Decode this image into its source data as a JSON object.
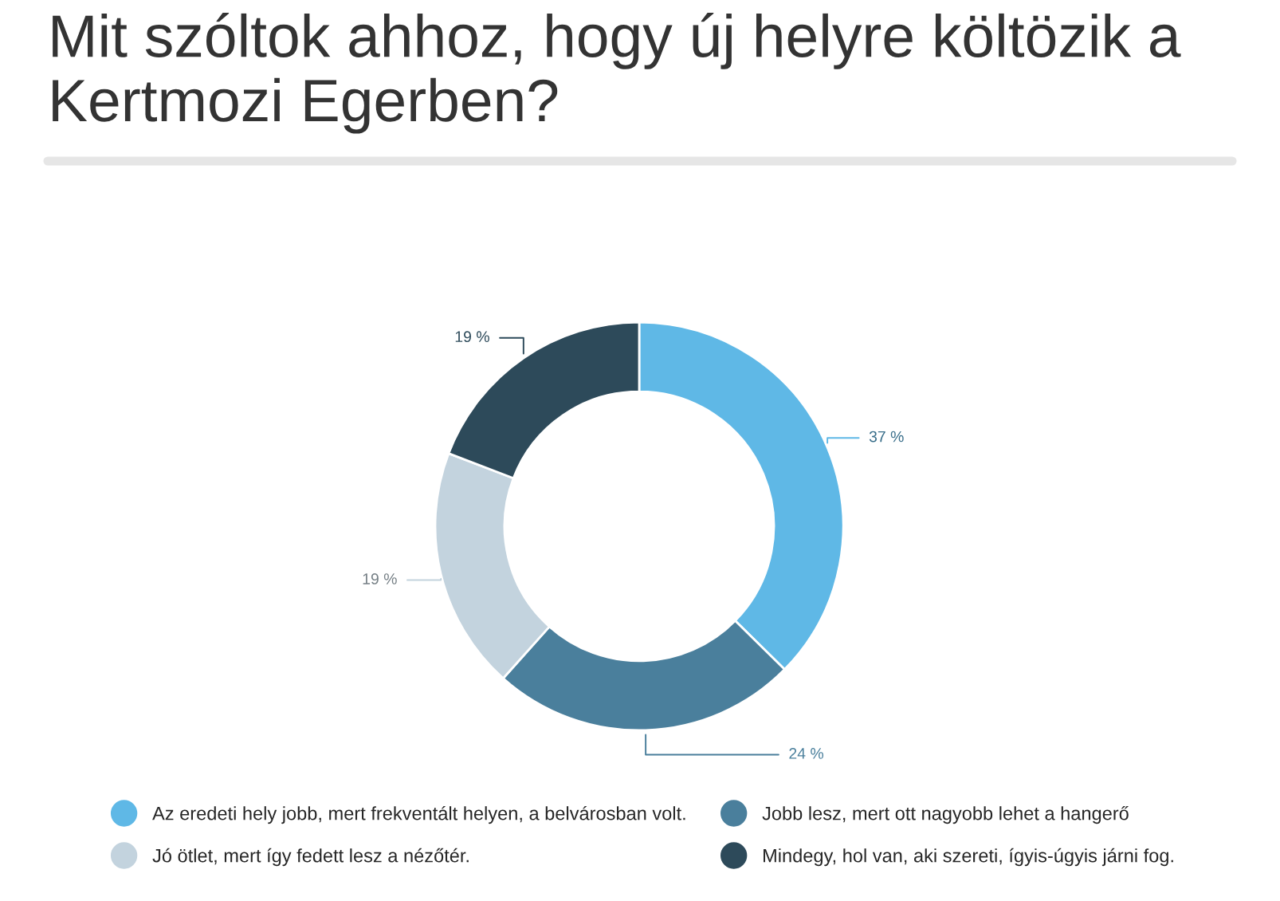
{
  "chart_data": {
    "type": "donut",
    "title": "Mit szóltok ahhoz, hogy új helyre költözik a Kertmozi Egerben?",
    "categories": [
      "Az eredeti hely jobb, mert frekventált helyen, a belvárosban volt.",
      "Jobb lesz, mert ott nagyobb lehet a hangerő",
      "Jó ötlet, mert így fedett lesz a nézőtér.",
      "Mindegy, hol van, aki szereti, ígyis-úgyis járni fog."
    ],
    "values": [
      37,
      24,
      19,
      19
    ],
    "value_labels": [
      "37 %",
      "24 %",
      "19 %",
      "19 %"
    ],
    "colors": [
      "#5fb8e6",
      "#4a7f9c",
      "#c3d3de",
      "#2d4a5a"
    ],
    "legend": "bottom"
  }
}
